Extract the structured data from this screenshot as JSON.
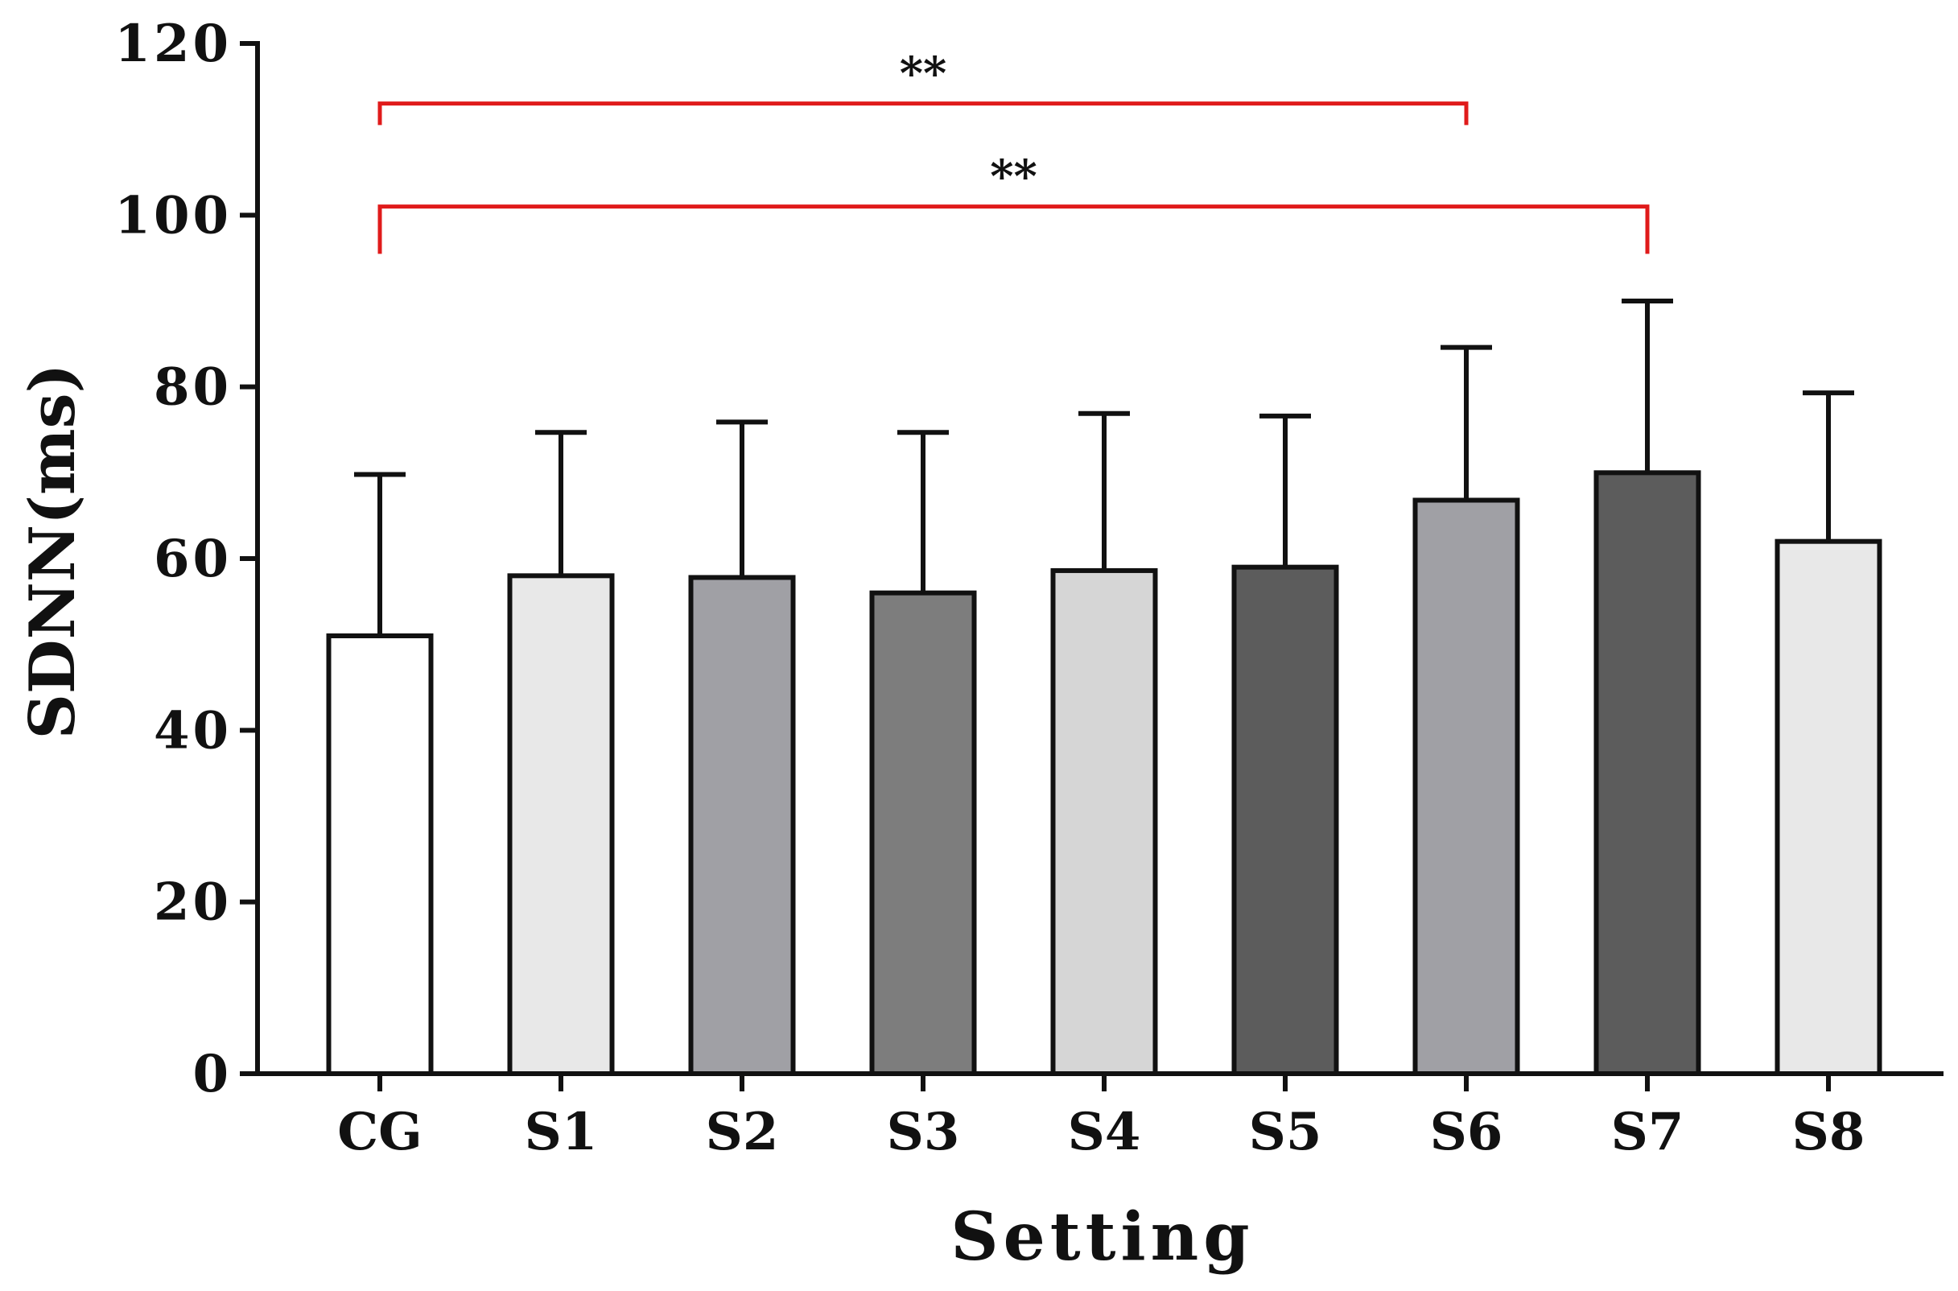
{
  "chart_data": {
    "type": "bar",
    "xlabel": "Setting",
    "ylabel": "SDNN(ms)",
    "ylim": [
      0,
      120
    ],
    "yticks": [
      "0",
      "20",
      "40",
      "60",
      "80",
      "100",
      "120"
    ],
    "yticks_values": [
      0,
      20,
      40,
      60,
      80,
      100,
      120
    ],
    "categories": [
      "CG",
      "S1",
      "S2",
      "S3",
      "S4",
      "S5",
      "S6",
      "S7",
      "S8"
    ],
    "values": [
      51,
      58,
      57.8,
      56,
      58.6,
      59,
      66.8,
      70,
      62
    ],
    "error_upper": [
      69.8,
      74.7,
      75.9,
      74.7,
      76.9,
      76.6,
      84.6,
      90,
      79.3
    ],
    "bar_colors": [
      "#ffffff",
      "#e8e8e8",
      "#a0a0a5",
      "#7d7d7d",
      "#d6d6d6",
      "#5c5c5c",
      "#a0a0a5",
      "#5c5c5c",
      "#e8e8e8"
    ],
    "significance": [
      {
        "from": "CG",
        "to": "S6",
        "label": "**",
        "level": 113
      },
      {
        "from": "CG",
        "to": "S7",
        "label": "**",
        "level": 101
      }
    ],
    "significance_color": "#e01b1b"
  }
}
